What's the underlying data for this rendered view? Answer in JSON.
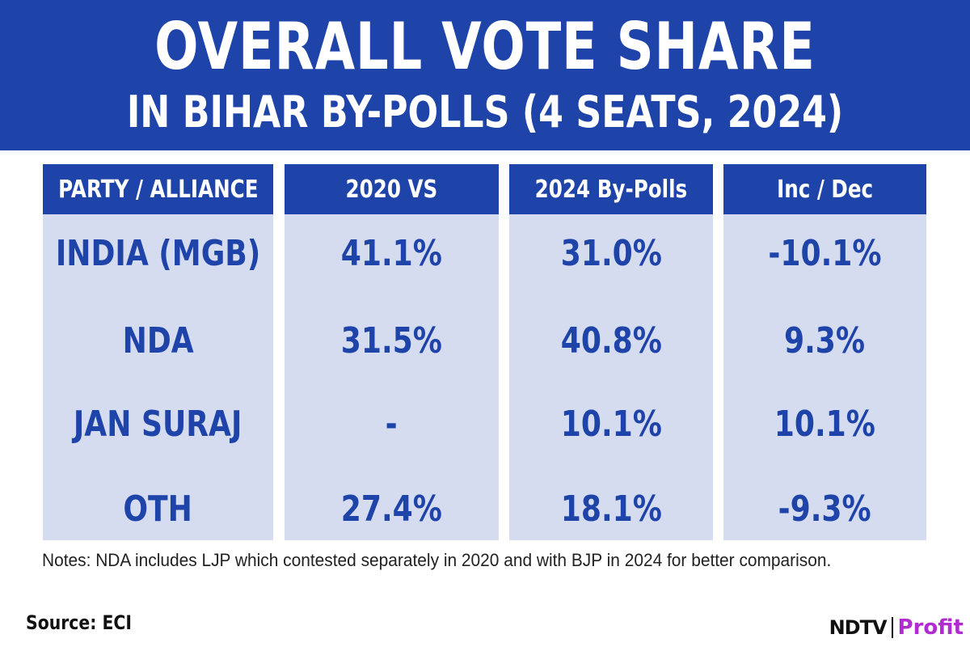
{
  "banner": {
    "title": "OVERALL VOTE SHARE",
    "subtitle": "IN BIHAR BY-POLLS (4 SEATS, 2024)"
  },
  "chart_data": {
    "type": "table",
    "columns": [
      "PARTY / ALLIANCE",
      "2020 VS",
      "2024 By-Polls",
      "Inc / Dec"
    ],
    "rows": [
      [
        "INDIA (MGB)",
        "41.1%",
        "31.0%",
        "-10.1%"
      ],
      [
        "NDA",
        "31.5%",
        "40.8%",
        "9.3%"
      ],
      [
        "JAN SURAJ",
        "-",
        "10.1%",
        "10.1%"
      ],
      [
        "OTH",
        "27.4%",
        "18.1%",
        "-9.3%"
      ]
    ]
  },
  "notes": "Notes: NDA includes LJP which contested separately in 2020 and with BJP in 2024 for better comparison.",
  "source": "Source: ECI",
  "logo": {
    "ndtv": "NDTV",
    "profit": "Profit"
  },
  "colors": {
    "banner": "#1f44a9",
    "cell_bg": "#d6dcef",
    "text_accent": "#1f44a9",
    "profit": "#b22ad1"
  }
}
